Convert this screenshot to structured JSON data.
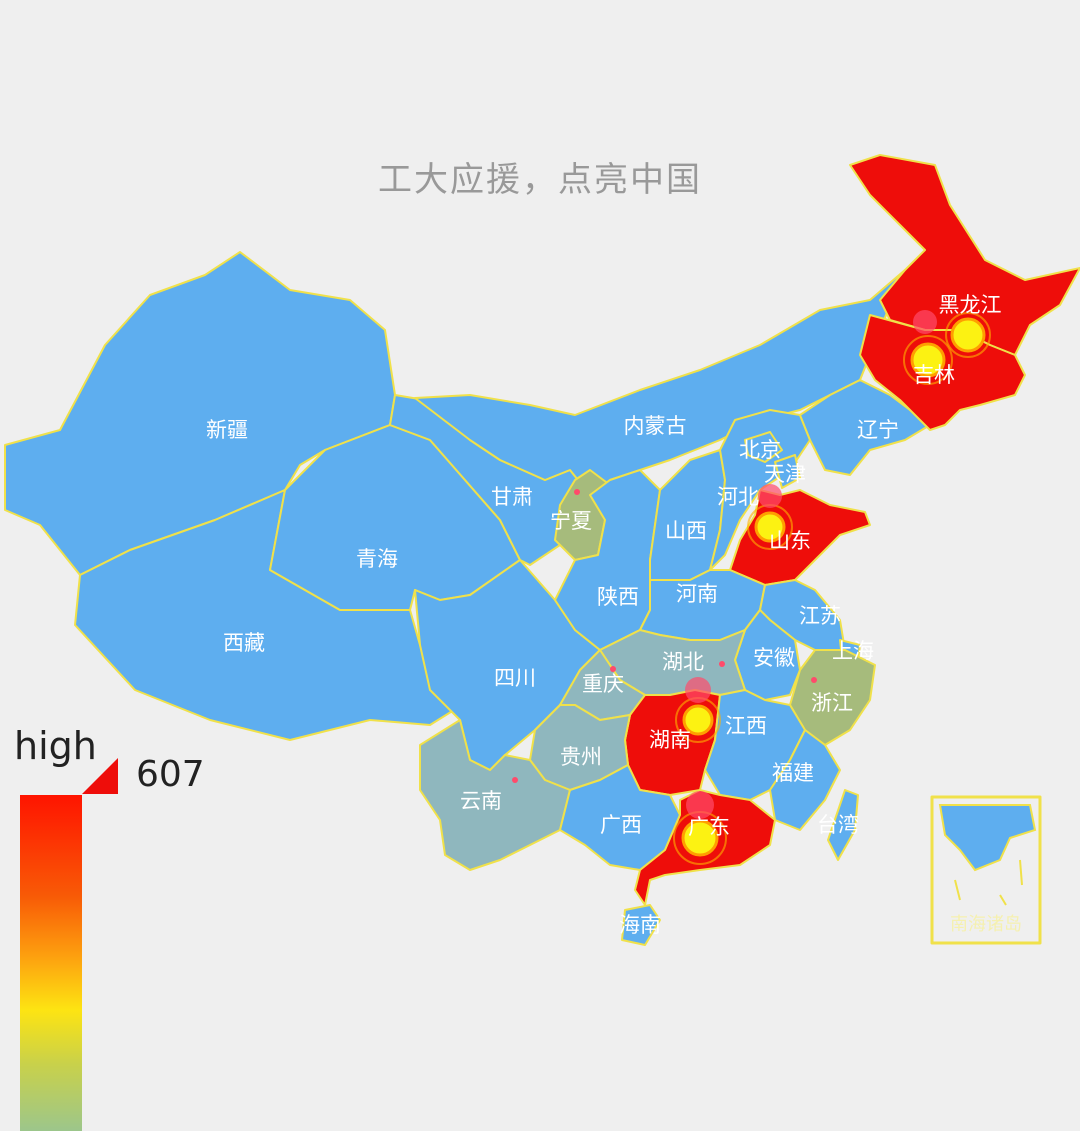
{
  "title": "工大应援，点亮中国",
  "visual_map": {
    "max_label": "high",
    "max_value": "607",
    "colors": [
      "#ff1400",
      "#fda00f",
      "#fde412",
      "#9cc68b"
    ]
  },
  "colors": {
    "base_province": "#5eaeef",
    "highlight": "#ee0d0a",
    "mid_tone": "#8fb7be",
    "olive": "#a6bb7c",
    "border": "#f0e14a",
    "marker": "#fcf212"
  },
  "provinces": [
    "新疆",
    "西藏",
    "青海",
    "甘肃",
    "内蒙古",
    "宁夏",
    "四川",
    "陕西",
    "山西",
    "北京",
    "天津",
    "河北",
    "辽宁",
    "吉林",
    "黑龙江",
    "山东",
    "河南",
    "江苏",
    "上海",
    "安徽",
    "湖北",
    "重庆",
    "浙江",
    "湖南",
    "江西",
    "贵州",
    "云南",
    "福建",
    "广西",
    "广东",
    "台湾",
    "海南",
    "南海诸岛"
  ],
  "highlighted": [
    "黑龙江",
    "吉林",
    "山东",
    "湖南",
    "广东"
  ]
}
